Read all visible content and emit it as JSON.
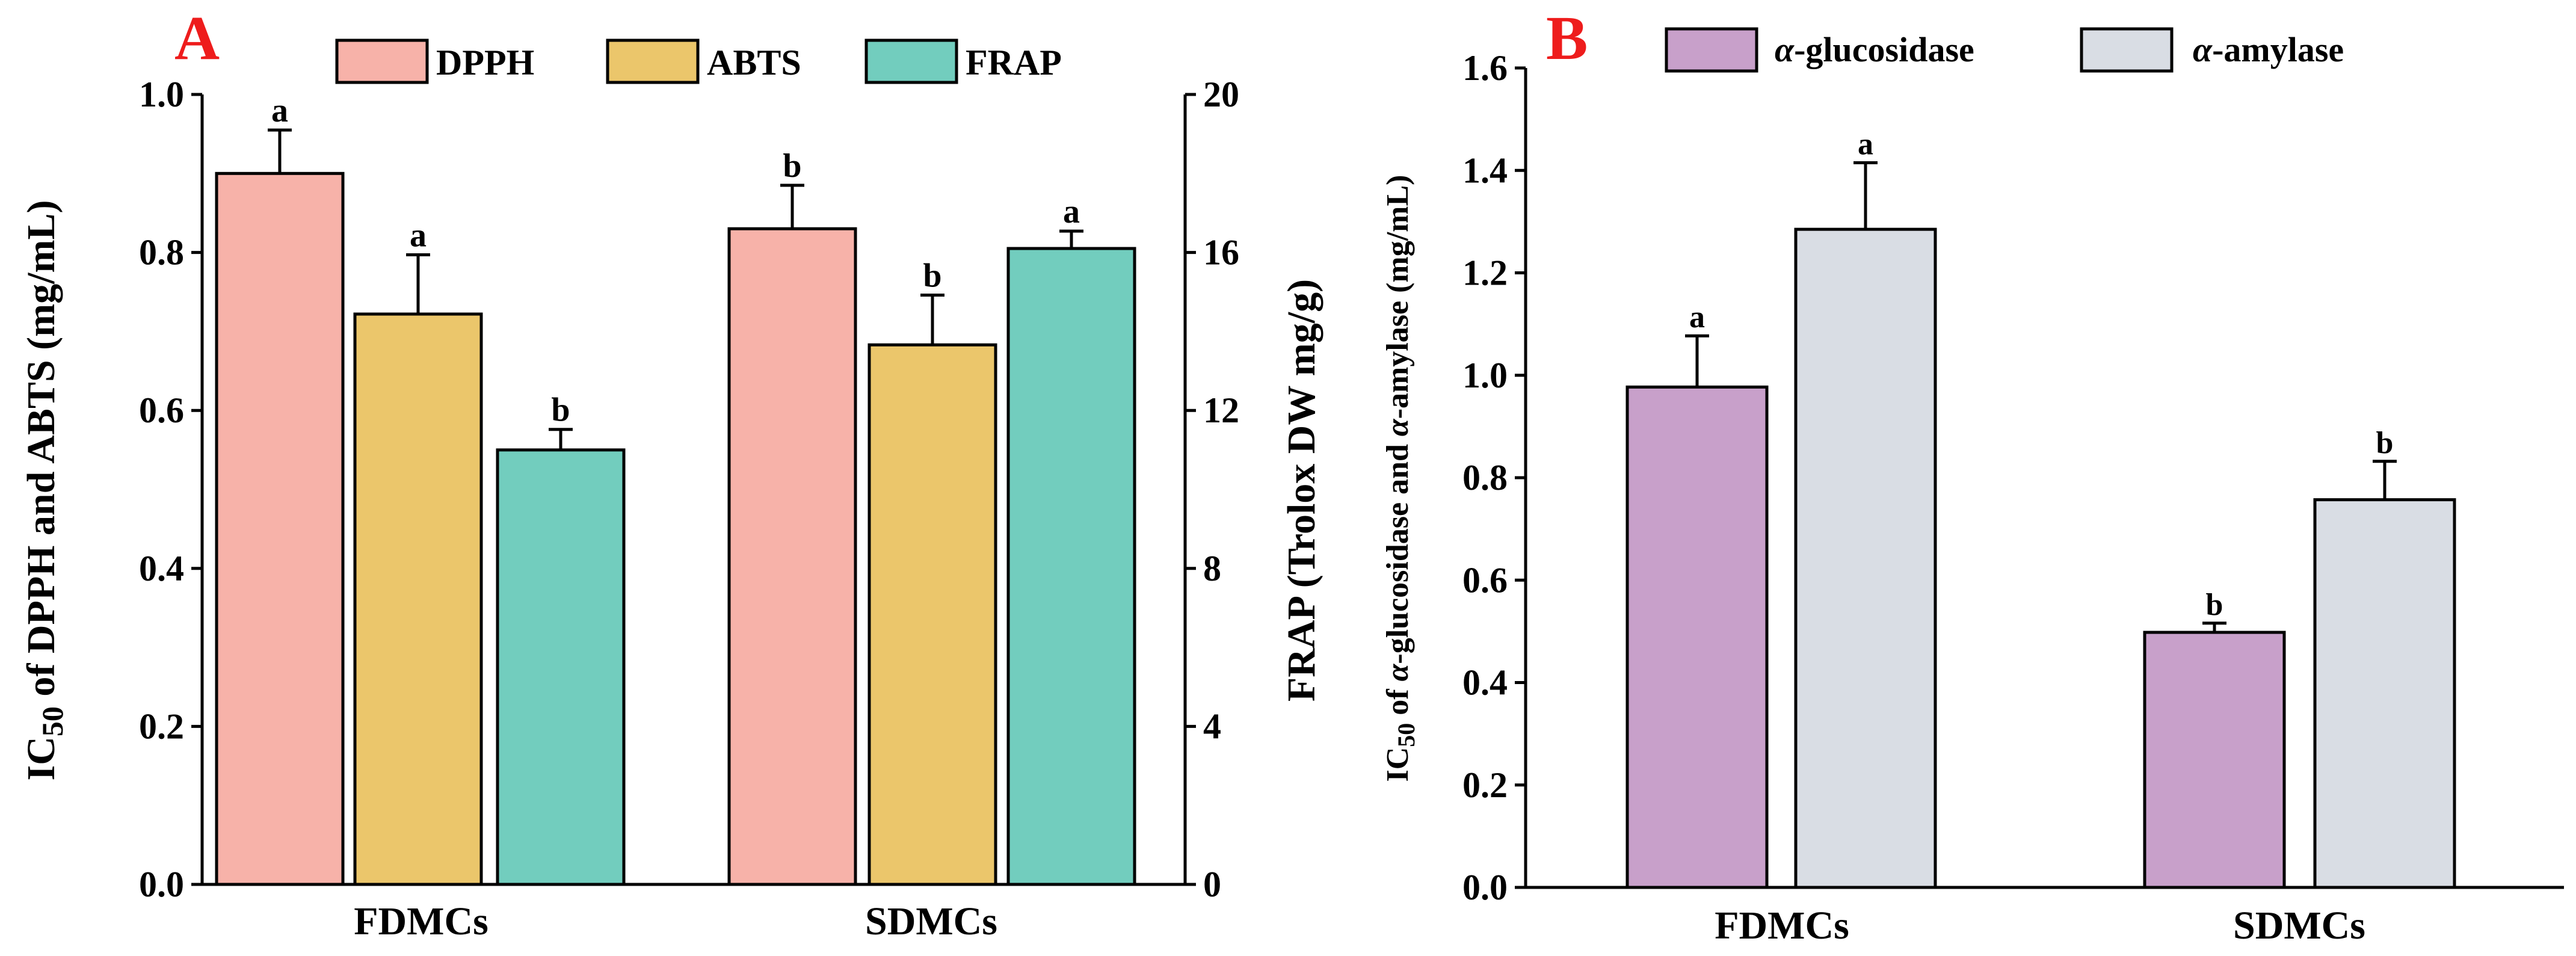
{
  "chart_data": [
    {
      "panel": "A",
      "type": "bar",
      "colors": {
        "DPPH": "#F7B2A9",
        "ABTS": "#EBC66B",
        "FRAP": "#72CDBE",
        "panel_letter": "#EE1C1C"
      },
      "categories": [
        "FDMCs",
        "SDMCs"
      ],
      "series": [
        {
          "name": "DPPH",
          "axis": "left",
          "values": [
            0.9,
            0.83
          ],
          "errors": [
            0.055,
            0.055
          ],
          "letters": [
            "a",
            "b"
          ]
        },
        {
          "name": "ABTS",
          "axis": "left",
          "values": [
            0.722,
            0.683
          ],
          "errors": [
            0.075,
            0.063
          ],
          "letters": [
            "a",
            "b"
          ]
        },
        {
          "name": "FRAP",
          "axis": "right",
          "values": [
            11.0,
            16.1
          ],
          "errors": [
            0.52,
            0.44
          ],
          "letters": [
            "b",
            "a"
          ]
        }
      ],
      "ylabel": "IC50 of DPPH and ABTS (mg/mL)",
      "ylabel_parts": {
        "prefix": "IC",
        "sub": "50",
        "rest": " of DPPH and ABTS (mg/mL)"
      },
      "y2label": "FRAP (Trolox DW mg/g)",
      "ylim": [
        0,
        1.0
      ],
      "yticks": [
        "0.0",
        "0.2",
        "0.4",
        "0.6",
        "0.8",
        "1.0"
      ],
      "y2lim": [
        0,
        20
      ],
      "y2ticks": [
        "0",
        "4",
        "8",
        "12",
        "16",
        "20"
      ],
      "legend": "top"
    },
    {
      "panel": "B",
      "type": "bar",
      "colors": {
        "α-glucosidase": "#C8A0CA",
        "α-amylase": "#D9DDE4",
        "panel_letter": "#EE1C1C"
      },
      "categories": [
        "FDMCs",
        "SDMCs"
      ],
      "series": [
        {
          "name": "α-glucosidase",
          "values": [
            0.977,
            0.498
          ],
          "errors": [
            0.1,
            0.018
          ],
          "letters": [
            "a",
            "b"
          ]
        },
        {
          "name": "α-amylase",
          "values": [
            1.285,
            0.757
          ],
          "errors": [
            0.13,
            0.075
          ],
          "letters": [
            "a",
            "b"
          ]
        }
      ],
      "ylabel": "IC50 of α-glucosidase and α-amylase (mg/mL)",
      "ylabel_parts": {
        "prefix": "IC",
        "sub": "50",
        "rest_a": " of ",
        "it1": "α",
        "rest_b": "-glucosidase and ",
        "it2": "α",
        "rest_c": "-amylase (mg/mL)"
      },
      "legend_parts": [
        {
          "greek": "α",
          "rest": "-glucosidase"
        },
        {
          "greek": "α",
          "rest": "-amylase"
        }
      ],
      "ylim": [
        0,
        1.6
      ],
      "yticks": [
        "0.0",
        "0.2",
        "0.4",
        "0.6",
        "0.8",
        "1.0",
        "1.2",
        "1.4",
        "1.6"
      ],
      "legend": "top"
    }
  ]
}
